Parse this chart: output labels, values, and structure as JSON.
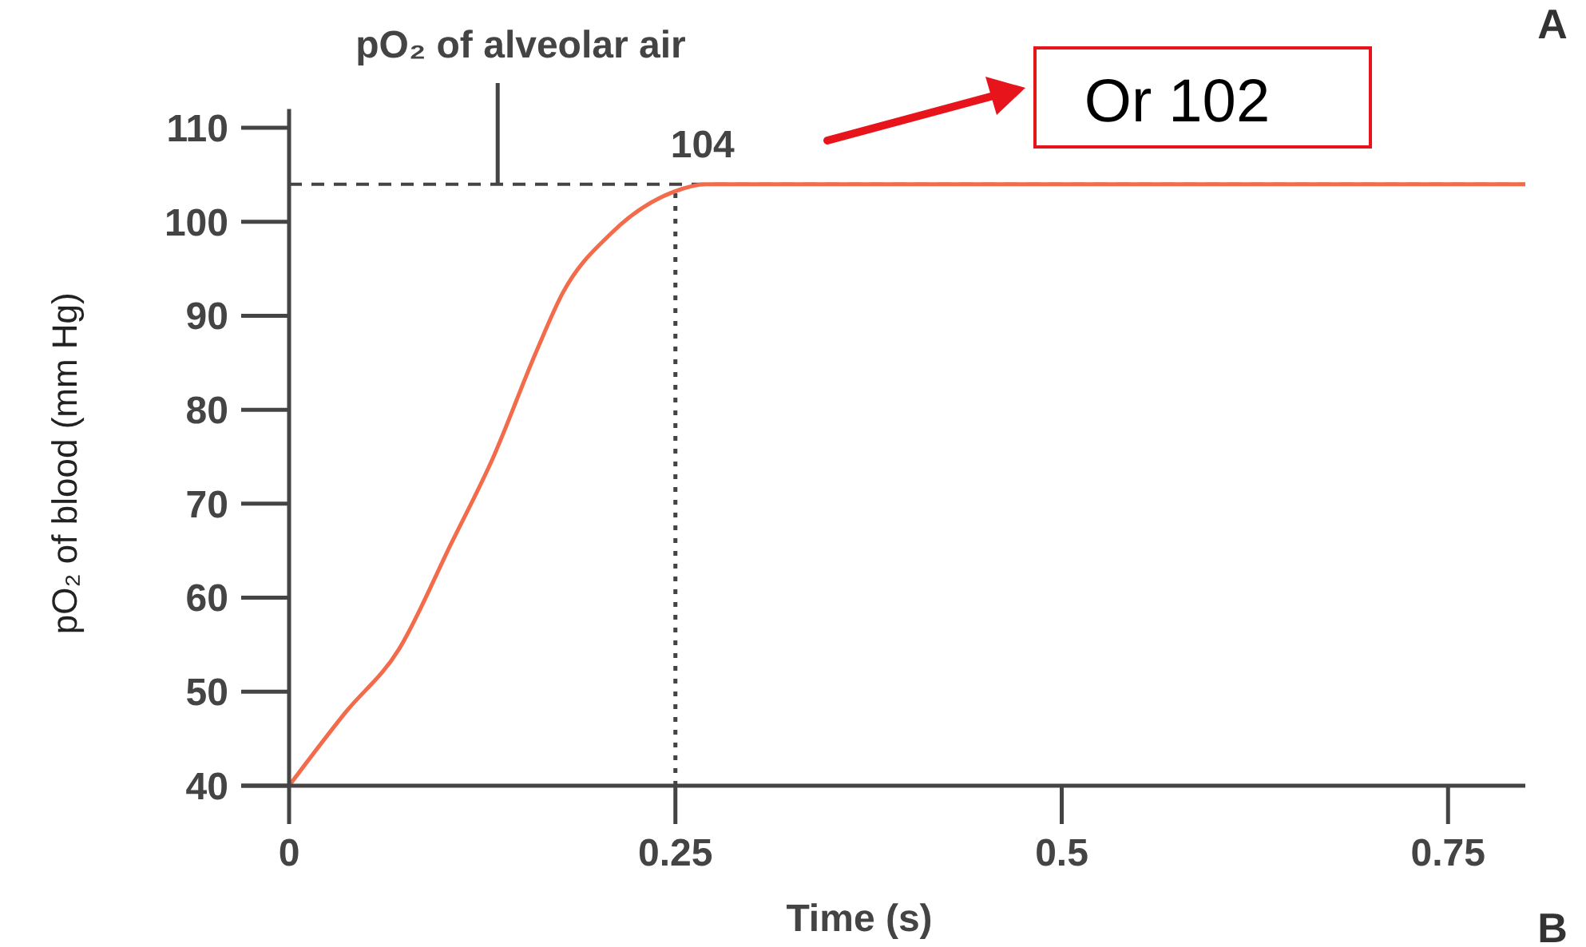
{
  "chart_data": {
    "type": "line",
    "xlabel": "Time (s)",
    "ylabel": "pO₂ of blood (mm Hg)",
    "xlim": [
      0,
      0.8
    ],
    "xticks": [
      0,
      0.25,
      0.5,
      0.75
    ],
    "ylim": [
      40,
      112
    ],
    "yticks": [
      40,
      50,
      60,
      70,
      80,
      90,
      100,
      110
    ],
    "grid": false,
    "marker": "none",
    "line_style": "solid",
    "series": [
      {
        "color": "#f26b4a",
        "x": [
          0,
          0.036,
          0.071,
          0.105,
          0.132,
          0.16,
          0.177,
          0.208,
          0.249,
          0.27,
          0.5,
          0.8
        ],
        "values": [
          40,
          47.7,
          54.5,
          65.8,
          74.9,
          86.2,
          92.4,
          98.7,
          103.2,
          104,
          104,
          104
        ]
      }
    ],
    "ref_lines": [
      {
        "axis": "y",
        "value": 104,
        "line_style": "dashed",
        "color": "#444444"
      },
      {
        "axis": "x",
        "value": 0.25,
        "line_style": "dotted",
        "color": "#444444"
      }
    ],
    "annotations": [
      {
        "text": "pO₂ of alveolar air",
        "x": 0.135,
        "y": 104
      },
      {
        "text": "104",
        "x": 0.25,
        "y": 104
      },
      "Or 102",
      "A",
      "B"
    ]
  }
}
